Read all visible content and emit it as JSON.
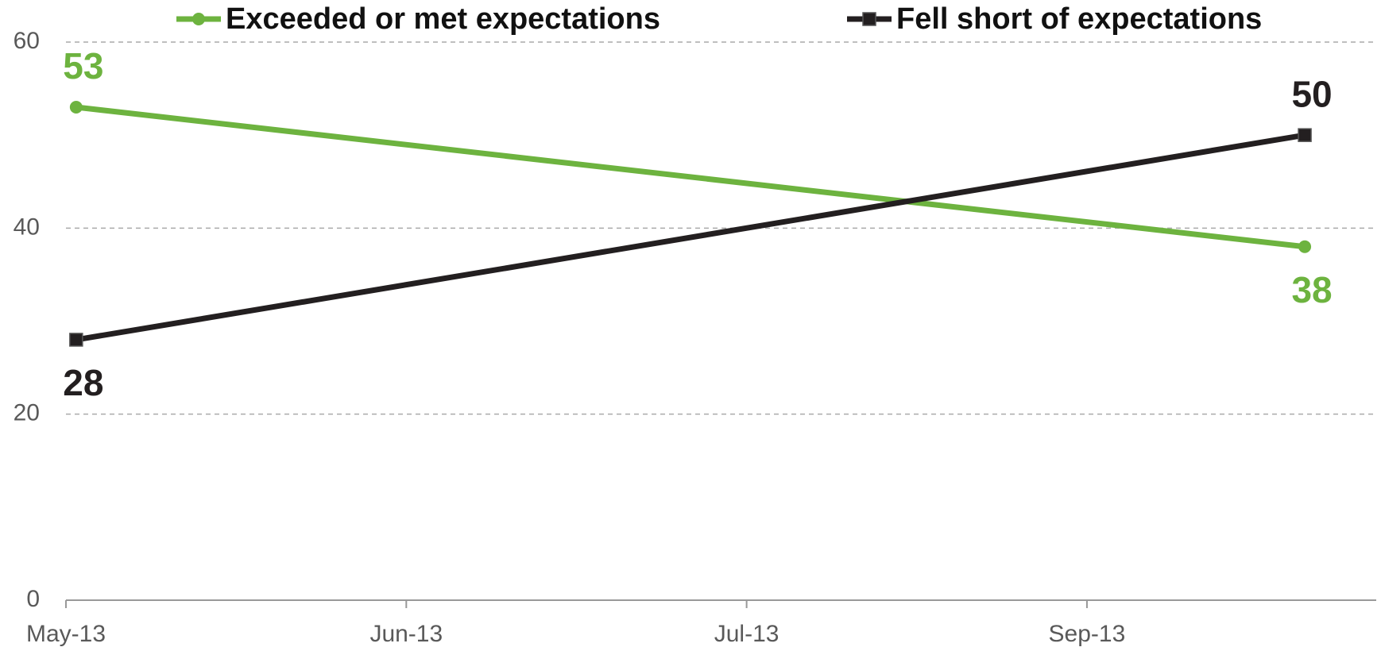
{
  "chart_data": {
    "type": "line",
    "x": [
      0.03,
      3.64
    ],
    "xlim": [
      0,
      3.85
    ],
    "xticks": [
      {
        "value": 0,
        "label": "May-13"
      },
      {
        "value": 1,
        "label": "Jun-13"
      },
      {
        "value": 2,
        "label": "Jul-13"
      },
      {
        "value": 3,
        "label": "Sep-13"
      }
    ],
    "ylim": [
      0,
      60
    ],
    "yticks": [
      0,
      20,
      40,
      60
    ],
    "grid": true,
    "legend": "top",
    "series": [
      {
        "name": "Exceeded or met expectations",
        "color": "#6db33f",
        "marker": "circle",
        "values": [
          53,
          38
        ]
      },
      {
        "name": "Fell short of expectations",
        "color": "#231f20",
        "marker": "square",
        "values": [
          28,
          50
        ]
      }
    ]
  }
}
